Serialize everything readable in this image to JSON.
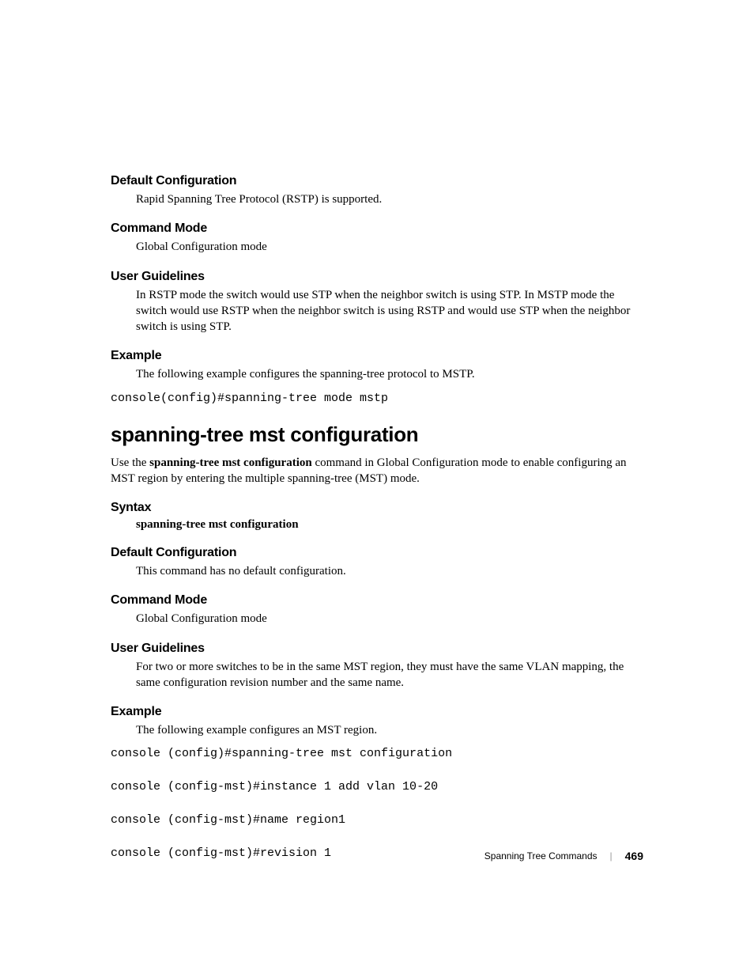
{
  "sections": {
    "default_config_1": {
      "heading": "Default Configuration",
      "body": "Rapid Spanning Tree Protocol (RSTP) is supported."
    },
    "command_mode_1": {
      "heading": "Command Mode",
      "body": "Global Configuration mode"
    },
    "user_guidelines_1": {
      "heading": "User Guidelines",
      "body": "In RSTP mode the switch would use STP when the neighbor switch is using STP. In MSTP mode the switch would use RSTP when the neighbor switch is using RSTP and would use STP when the neighbor switch is using STP."
    },
    "example_1": {
      "heading": "Example",
      "body": "The following example configures the spanning-tree protocol to MSTP.",
      "code": "console(config)#spanning-tree mode mstp"
    },
    "main_title": "spanning-tree mst configuration",
    "intro": {
      "prefix": "Use the ",
      "bold": "spanning-tree mst configuration",
      "suffix": " command in Global Configuration mode to enable configuring an MST region by entering the multiple spanning-tree (MST) mode."
    },
    "syntax": {
      "heading": "Syntax",
      "body": "spanning-tree mst configuration"
    },
    "default_config_2": {
      "heading": "Default Configuration",
      "body": "This command has no default configuration."
    },
    "command_mode_2": {
      "heading": "Command Mode",
      "body": "Global Configuration mode"
    },
    "user_guidelines_2": {
      "heading": "User Guidelines",
      "body": "For two or more switches to be in the same MST region, they must have the same VLAN mapping, the same configuration revision number and the same name."
    },
    "example_2": {
      "heading": "Example",
      "body": "The following example configures an MST region.",
      "code_line_1": "console (config)#spanning-tree mst configuration",
      "code_line_2": "console (config-mst)#instance 1 add vlan 10-20",
      "code_line_3": "console (config-mst)#name region1",
      "code_line_4": "console (config-mst)#revision 1"
    }
  },
  "footer": {
    "section_name": "Spanning Tree Commands",
    "divider": "|",
    "page_number": "469"
  },
  "colors": {
    "background": "#ffffff",
    "text": "#000000",
    "divider": "#999999"
  },
  "typography": {
    "heading_family": "Helvetica Neue, Arial, sans-serif",
    "body_family": "Georgia, Times New Roman, serif",
    "code_family": "Courier New, monospace",
    "heading_size": 16,
    "body_size": 15,
    "title_size": 26,
    "footer_size": 12,
    "page_number_size": 14
  }
}
